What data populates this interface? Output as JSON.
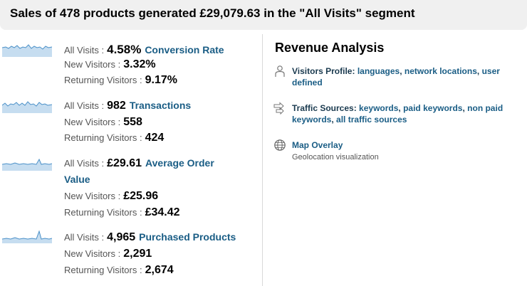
{
  "header": {
    "title": "Sales of 478 products generated £29,079.63 in the \"All Visits\" segment"
  },
  "metrics": [
    {
      "link_label": "Conversion Rate",
      "rows": [
        {
          "segment": "All Visits :",
          "value": "4.58%"
        },
        {
          "segment": "New Visitors :",
          "value": "3.32%"
        },
        {
          "segment": "Returning Visitors :",
          "value": "9.17%"
        }
      ]
    },
    {
      "link_label": "Transactions",
      "rows": [
        {
          "segment": "All Visits :",
          "value": "982"
        },
        {
          "segment": "New Visitors :",
          "value": "558"
        },
        {
          "segment": "Returning Visitors :",
          "value": "424"
        }
      ]
    },
    {
      "link_label": "Average Order",
      "link_label_2": "Value",
      "rows": [
        {
          "segment": "All Visits :",
          "value": "£29.61"
        },
        {
          "segment": "New Visitors :",
          "value": "£25.96"
        },
        {
          "segment": "Returning Visitors :",
          "value": "£34.42"
        }
      ]
    },
    {
      "link_label": "Purchased Products",
      "rows": [
        {
          "segment": "All Visits :",
          "value": "4,965"
        },
        {
          "segment": "New Visitors :",
          "value": "2,291"
        },
        {
          "segment": "Returning Visitors :",
          "value": "2,674"
        }
      ]
    }
  ],
  "revenue": {
    "heading": "Revenue Analysis",
    "visitors_profile": {
      "label": "Visitors Profile:",
      "links": [
        "languages",
        "network locations",
        "user defined"
      ],
      "separator": ","
    },
    "traffic_sources": {
      "label": "Traffic Sources:",
      "links": [
        "keywords",
        "paid keywords",
        "non paid keywords",
        "all traffic sources"
      ],
      "separator": ","
    },
    "map_overlay": {
      "label": "Map Overlay",
      "subtitle": "Geolocation visualization"
    }
  },
  "colors": {
    "link": "#1a5d85",
    "header_bg": "#f0f0f0",
    "sparkline_line": "#4a90c8",
    "sparkline_fill": "#c6ddf0"
  }
}
